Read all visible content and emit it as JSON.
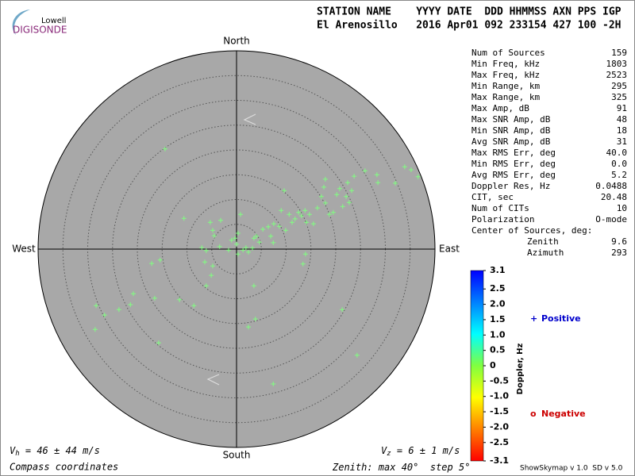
{
  "logo": {
    "line1": "Lowell",
    "line2": "DIGISONDE"
  },
  "header": {
    "columns": "STATION NAME    YYYY DATE  DDD HHMMSS AXN PPS IGP",
    "values": "El Arenosillo   2016 Apr01 092 233154 427 100 -2H"
  },
  "stats": {
    "rows": [
      {
        "label": "Num of Sources",
        "value": "159"
      },
      {
        "label": "Min Freq, kHz",
        "value": "1803"
      },
      {
        "label": "Max Freq, kHz",
        "value": "2523"
      },
      {
        "label": "Min Range, km",
        "value": "295"
      },
      {
        "label": "Max Range, km",
        "value": "325"
      },
      {
        "label": "Max Amp, dB",
        "value": "91"
      },
      {
        "label": "Max SNR Amp, dB",
        "value": "48"
      },
      {
        "label": "Min SNR Amp, dB",
        "value": "18"
      },
      {
        "label": "Avg SNR Amp, dB",
        "value": "31"
      },
      {
        "label": "Max RMS Err, deg",
        "value": "40.0"
      },
      {
        "label": "Min RMS Err, deg",
        "value": "0.0"
      },
      {
        "label": "Avg RMS Err, deg",
        "value": "5.2"
      },
      {
        "label": "Doppler Res, Hz",
        "value": "0.0488"
      },
      {
        "label": "CIT, sec",
        "value": "20.48"
      },
      {
        "label": "Num of CITs",
        "value": "10"
      },
      {
        "label": "Polarization",
        "value": "O-mode"
      }
    ],
    "center": {
      "title": "Center of Sources, deg:",
      "rows": [
        {
          "label": "Zenith",
          "value": "9.6"
        },
        {
          "label": "Azimuth",
          "value": "293"
        }
      ]
    }
  },
  "footer": {
    "vh": {
      "symbol": "V",
      "subscript": "h",
      "text": " = 46 ± 44 m/s"
    },
    "vz": {
      "symbol": "V",
      "subscript": "z",
      "text": " = 6 ± 1 m/s"
    },
    "coords": "Compass coordinates",
    "version": "ShowSkymap v 1.0  SD v 5.0"
  },
  "chart_data": {
    "type": "skymap",
    "directions": {
      "north": "North",
      "south": "South",
      "west": "West",
      "east": "East"
    },
    "zenith": {
      "prefix": "Zenith: max ",
      "max": 40,
      "unit": "°",
      "step_prefix": "  step ",
      "step": 5
    },
    "background": "#a8a8a8",
    "series": [
      {
        "name": "Sources",
        "color": "#80ff80",
        "x": [
          -14.4,
          -10.6,
          -5.3,
          -3.2,
          -4.5,
          -4.8,
          -7.0,
          -6.1,
          -6.4,
          -3.4,
          -1.0,
          -0.3,
          0.8,
          0.3,
          1.3,
          1.9,
          2.4,
          3.2,
          3.5,
          4.0,
          4.6,
          5.3,
          6.4,
          6.9,
          7.4,
          7.5,
          8.6,
          9.0,
          9.6,
          9.9,
          10.6,
          11.2,
          11.8,
          12.5,
          13.1,
          13.8,
          14.1,
          14.7,
          15.5,
          16.3,
          17.1,
          17.6,
          17.9,
          18.7,
          19.5,
          20.2,
          20.8,
          21.4,
          22.1,
          22.4,
          22.7,
          23.2,
          23.7,
          25.9,
          28.3,
          28.5,
          32.0,
          33.9,
          35.2,
          36.6,
          17.9,
          13.9,
          13.4,
          3.5,
          3.8,
          2.4,
          -4.8,
          -5.1,
          -6.1,
          -8.6,
          -11.5,
          -16.5,
          -15.4,
          -17.1,
          -20.8,
          -21.4,
          -23.7,
          -26.6,
          -28.3,
          -28.5,
          -15.7,
          21.3,
          24.3,
          7.4,
          0.0,
          -1.6,
          0.3
        ],
        "values": [
          20.2,
          6.2,
          5.4,
          5.8,
          2.7,
          3.8,
          0.3,
          -0.3,
          -2.6,
          0.5,
          1.8,
          2.2,
          7.0,
          3.2,
          -0.2,
          0.3,
          -0.6,
          0.2,
          2.2,
          2.6,
          1.4,
          4.0,
          4.5,
          2.6,
          1.3,
          5.1,
          4.6,
          7.8,
          11.8,
          3.8,
          7.0,
          5.4,
          6.1,
          7.4,
          6.7,
          7.8,
          5.4,
          7.0,
          5.1,
          8.3,
          10.6,
          12.5,
          9.3,
          7.0,
          7.4,
          11.0,
          12.2,
          8.6,
          10.6,
          13.4,
          9.4,
          11.8,
          14.7,
          15.8,
          15.0,
          13.4,
          13.3,
          16.6,
          16.0,
          14.6,
          14.1,
          -1.0,
          -3.0,
          -7.4,
          -14.1,
          -15.7,
          -3.4,
          -5.3,
          -7.4,
          -11.4,
          -10.2,
          -9.9,
          -2.2,
          -2.9,
          -9.0,
          -11.2,
          -12.2,
          -13.3,
          -11.4,
          -16.2,
          -18.9,
          -12.2,
          -21.4,
          -27.2,
          1.0,
          -0.2,
          -1.0
        ]
      }
    ],
    "colorbar": {
      "label": "Doppler, Hz",
      "clim": [
        -3.1,
        3.1
      ],
      "colors": [
        "#ff0000",
        "#ff8000",
        "#ffff00",
        "#80ff40",
        "#00ffff",
        "#0080ff",
        "#0000ff"
      ],
      "ticks": [
        3.1,
        2.5,
        {
          "value": 2,
          "label": "2.0"
        },
        1.5,
        {
          "value": 1,
          "label": "1.0"
        },
        0.5,
        0,
        -0.5,
        {
          "value": -1,
          "label": "-1.0"
        },
        -1.5,
        {
          "value": -2,
          "label": "-2.0"
        },
        -2.5,
        -3.1
      ]
    },
    "legend": [
      {
        "marker": "+",
        "name": "Positive",
        "color": "#0000cc"
      },
      {
        "marker": "o",
        "name": "Negative",
        "color": "#cc0000"
      }
    ]
  }
}
